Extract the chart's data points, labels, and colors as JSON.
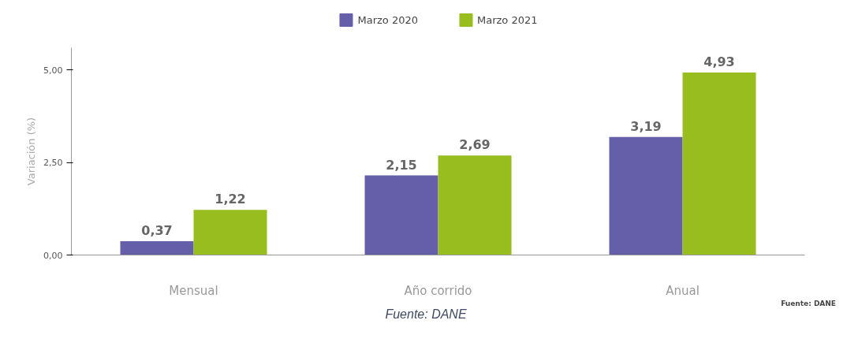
{
  "chart_data": {
    "type": "bar",
    "categories": [
      "Mensual",
      "Año corrido",
      "Anual"
    ],
    "series": [
      {
        "name": "Marzo 2020",
        "color": "#655ea8",
        "values": [
          0.37,
          2.15,
          3.19
        ],
        "value_labels": [
          "0,37",
          "2,15",
          "3,19"
        ]
      },
      {
        "name": "Marzo 2021",
        "color": "#98bd1f",
        "values": [
          1.22,
          2.69,
          4.93
        ],
        "value_labels": [
          "1,22",
          "2,69",
          "4,93"
        ]
      }
    ],
    "ylabel": "Variación (%)",
    "ylim": [
      0,
      5.6
    ],
    "yticks": [
      {
        "value": 0,
        "label": "0,00"
      },
      {
        "value": 2.5,
        "label": "2,50"
      },
      {
        "value": 5,
        "label": "5,00"
      }
    ],
    "legend": "top",
    "annotations": [
      "Fuente: DANE",
      "Fuente: DANE"
    ]
  }
}
